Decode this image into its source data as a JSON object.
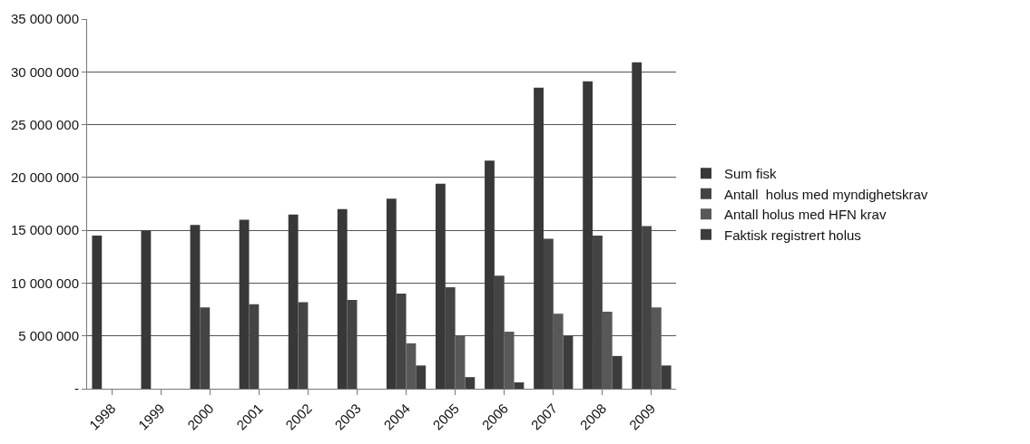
{
  "chart_data": {
    "type": "bar",
    "categories": [
      "1998",
      "1999",
      "2000",
      "2001",
      "2002",
      "2003",
      "2004",
      "2005",
      "2006",
      "2007",
      "2008",
      "2009"
    ],
    "series": [
      {
        "name": "Sum fisk",
        "color": "#383838",
        "values": [
          14500000,
          15000000,
          15500000,
          16000000,
          16500000,
          17000000,
          18000000,
          19400000,
          21600000,
          28500000,
          29100000,
          30900000
        ]
      },
      {
        "name": "Antall  holus med myndighetskrav",
        "color": "#444444",
        "values": [
          null,
          null,
          7700000,
          8000000,
          8200000,
          8400000,
          9000000,
          9600000,
          10700000,
          14200000,
          14500000,
          15400000
        ]
      },
      {
        "name": "Antall holus med HFN krav",
        "color": "#585858",
        "values": [
          null,
          null,
          null,
          null,
          null,
          null,
          4300000,
          5000000,
          5400000,
          7100000,
          7300000,
          7700000
        ]
      },
      {
        "name": "Faktisk registrert holus",
        "color": "#3c3c3c",
        "values": [
          null,
          null,
          null,
          null,
          null,
          null,
          2200000,
          1100000,
          600000,
          5000000,
          3100000,
          2200000
        ]
      }
    ],
    "ylim": [
      0,
      35000000
    ],
    "yticks": [
      {
        "value": 0,
        "label": "-"
      },
      {
        "value": 5000000,
        "label": "5 000 000"
      },
      {
        "value": 10000000,
        "label": "10 000 000"
      },
      {
        "value": 15000000,
        "label": "15 000 000"
      },
      {
        "value": 20000000,
        "label": "20 000 000"
      },
      {
        "value": 25000000,
        "label": "25 000 000"
      },
      {
        "value": 30000000,
        "label": "30 000 000"
      },
      {
        "value": 35000000,
        "label": "35 000 000"
      }
    ],
    "grid": "y",
    "legend": "right"
  }
}
